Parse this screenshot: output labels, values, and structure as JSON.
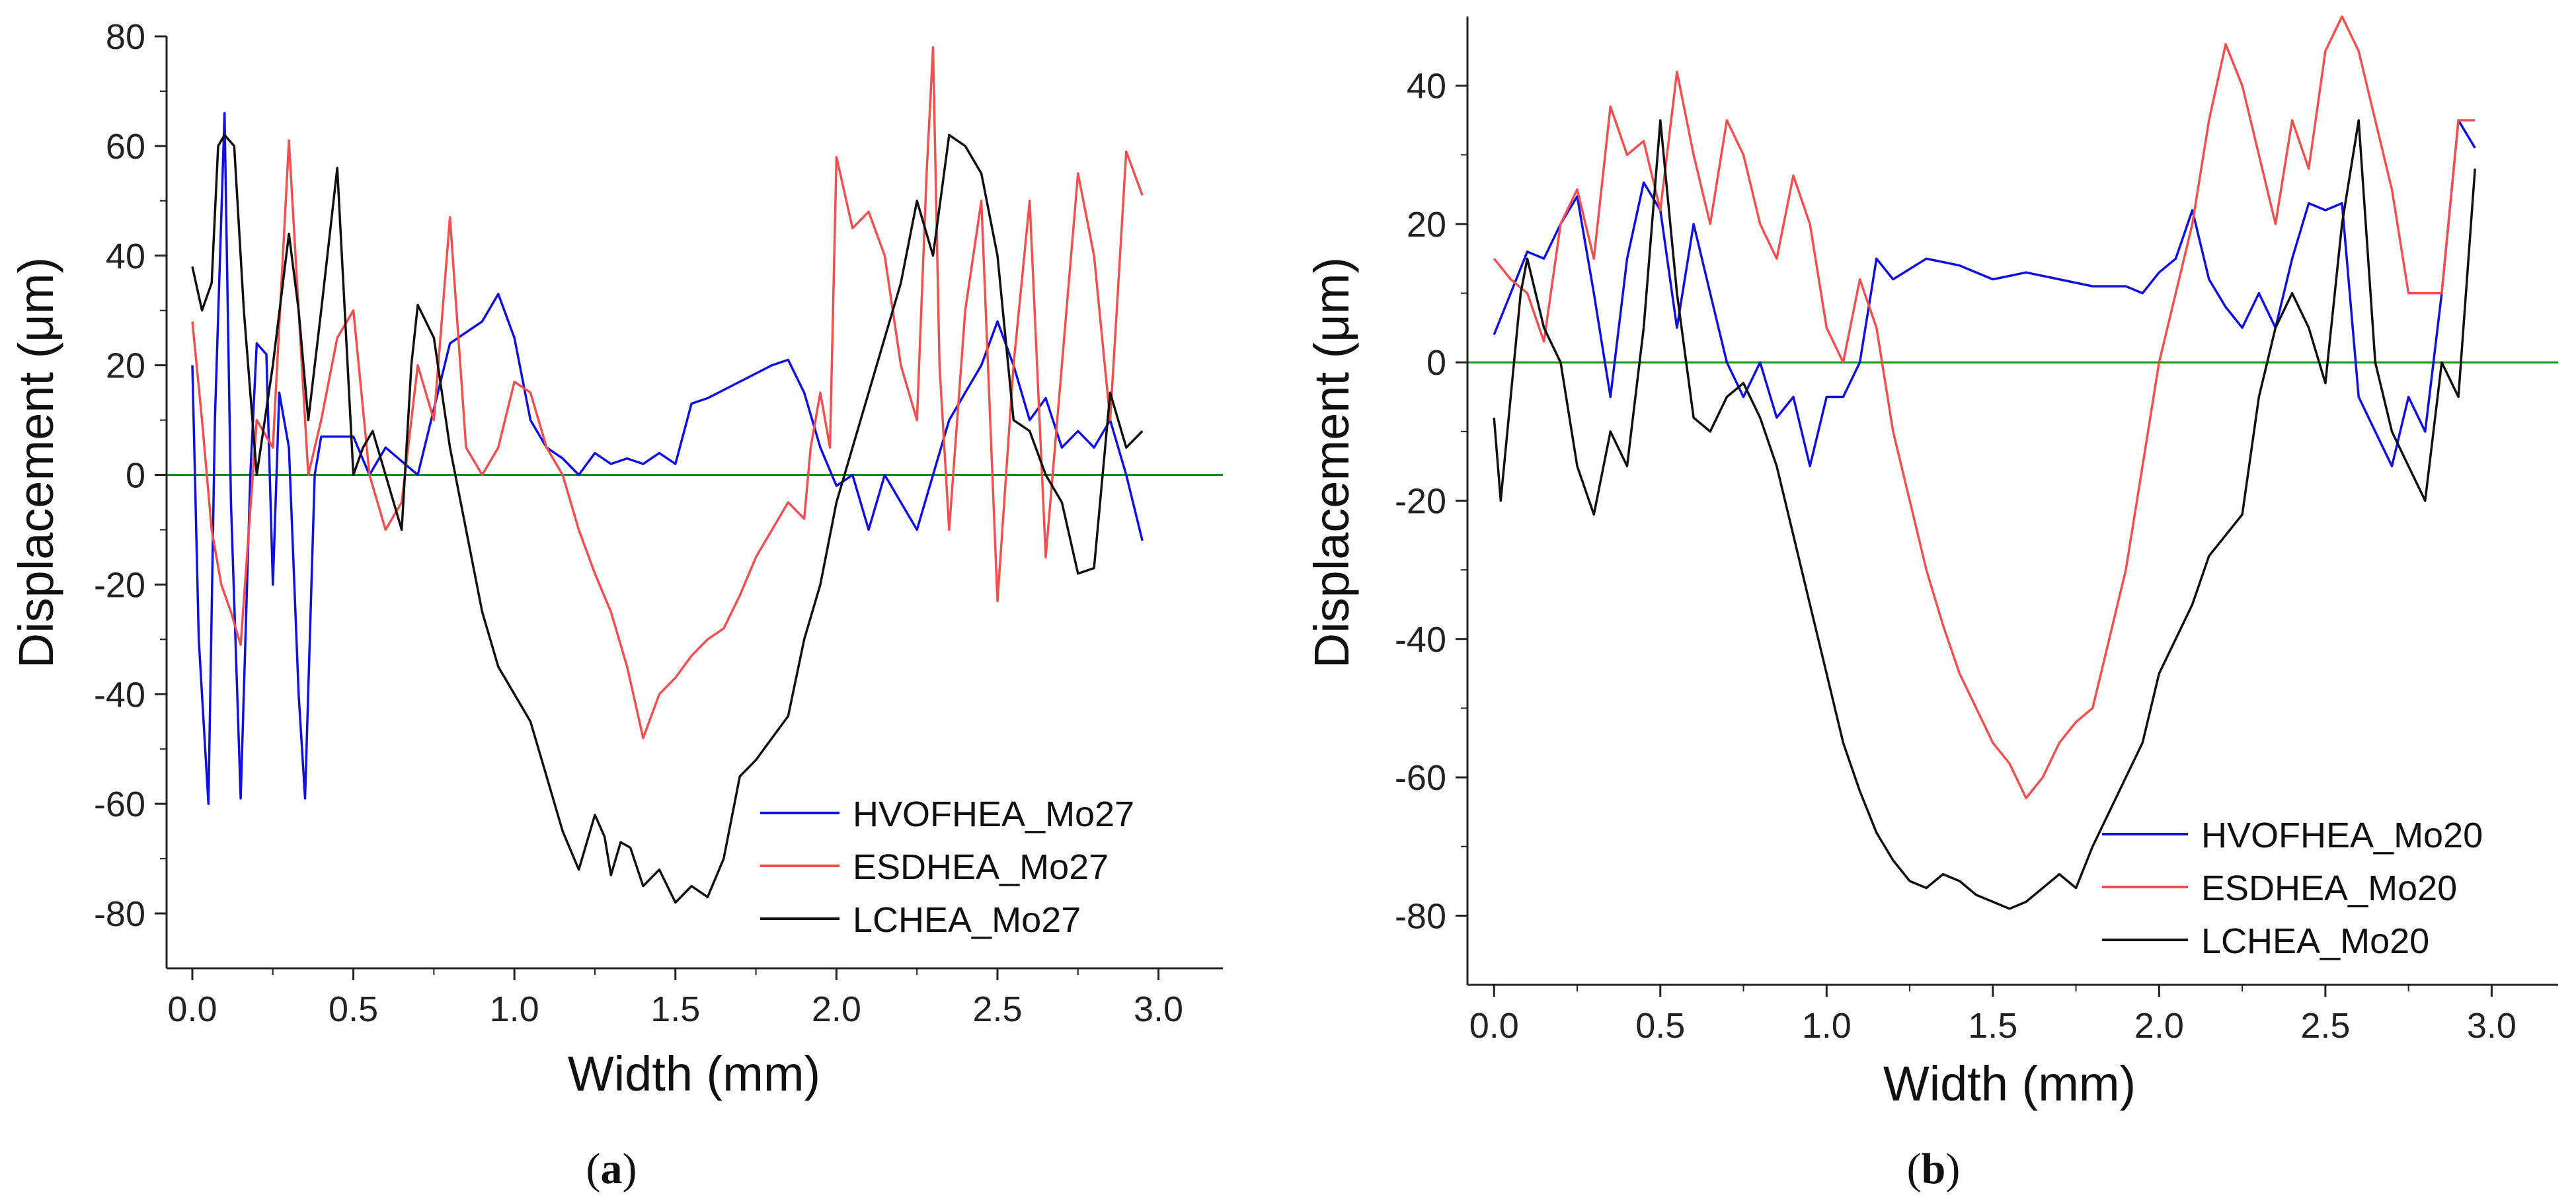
{
  "chart_data": [
    {
      "type": "line",
      "panel": "a",
      "caption": {
        "open": "(",
        "letter": "a",
        "close": ")"
      },
      "title": "",
      "xlabel": "Width (mm)",
      "ylabel": "Displacement (μm)",
      "xlim": [
        -0.08,
        3.2
      ],
      "ylim": [
        -90,
        80
      ],
      "xticks": [
        0.0,
        0.5,
        1.0,
        1.5,
        2.0,
        2.5,
        3.0
      ],
      "xtick_labels": [
        "0.0",
        "0.5",
        "1.0",
        "1.5",
        "2.0",
        "2.5",
        "3.0"
      ],
      "yticks": [
        80,
        60,
        40,
        20,
        0,
        -20,
        -40,
        -60,
        -80
      ],
      "ytick_labels": [
        "80",
        "60",
        "40",
        "20",
        "0",
        "-20",
        "-40",
        "-60",
        "-80"
      ],
      "zero_line": {
        "y": 0,
        "color": "#109010"
      },
      "legend_position": "bottom-right",
      "series": [
        {
          "name": "HVOFHEA_Mo27",
          "color": "#1010e0",
          "x": [
            0.0,
            0.02,
            0.05,
            0.07,
            0.1,
            0.12,
            0.15,
            0.18,
            0.2,
            0.23,
            0.25,
            0.27,
            0.3,
            0.33,
            0.35,
            0.38,
            0.4,
            0.5,
            0.55,
            0.6,
            0.7,
            0.8,
            0.9,
            0.95,
            1.0,
            1.05,
            1.1,
            1.15,
            1.2,
            1.25,
            1.3,
            1.35,
            1.4,
            1.45,
            1.5,
            1.55,
            1.6,
            1.7,
            1.8,
            1.85,
            1.9,
            1.95,
            2.0,
            2.05,
            2.1,
            2.15,
            2.2,
            2.25,
            2.3,
            2.35,
            2.4,
            2.45,
            2.5,
            2.55,
            2.6,
            2.65,
            2.7,
            2.75,
            2.8,
            2.85,
            2.9,
            2.95
          ],
          "values": [
            20,
            -30,
            -60,
            10,
            66,
            -5,
            -59,
            0,
            24,
            22,
            -20,
            15,
            5,
            -40,
            -59,
            0,
            7,
            7,
            0,
            5,
            0,
            24,
            28,
            33,
            25,
            10,
            5,
            3,
            0,
            4,
            2,
            3,
            2,
            4,
            2,
            13,
            14,
            17,
            20,
            21,
            15,
            5,
            -2,
            0,
            -10,
            0,
            -5,
            -10,
            0,
            10,
            15,
            20,
            28,
            20,
            10,
            14,
            5,
            8,
            5,
            10,
            0,
            -12
          ]
        },
        {
          "name": "ESDHEA_Mo27",
          "color": "#f05050",
          "x": [
            0.0,
            0.03,
            0.06,
            0.09,
            0.12,
            0.15,
            0.2,
            0.25,
            0.3,
            0.33,
            0.36,
            0.4,
            0.45,
            0.5,
            0.55,
            0.6,
            0.65,
            0.7,
            0.75,
            0.8,
            0.85,
            0.9,
            0.95,
            1.0,
            1.05,
            1.1,
            1.15,
            1.2,
            1.25,
            1.3,
            1.35,
            1.4,
            1.45,
            1.5,
            1.55,
            1.6,
            1.65,
            1.7,
            1.75,
            1.8,
            1.85,
            1.9,
            1.92,
            1.95,
            1.98,
            2.0,
            2.05,
            2.1,
            2.15,
            2.2,
            2.25,
            2.28,
            2.3,
            2.32,
            2.35,
            2.4,
            2.45,
            2.5,
            2.55,
            2.6,
            2.65,
            2.7,
            2.75,
            2.8,
            2.85,
            2.9,
            2.95
          ],
          "values": [
            28,
            10,
            -10,
            -20,
            -25,
            -31,
            10,
            5,
            61,
            30,
            0,
            10,
            25,
            30,
            0,
            -10,
            -5,
            20,
            10,
            47,
            5,
            0,
            5,
            17,
            15,
            5,
            0,
            -10,
            -18,
            -25,
            -35,
            -48,
            -40,
            -37,
            -33,
            -30,
            -28,
            -22,
            -15,
            -10,
            -5,
            -8,
            5,
            15,
            5,
            58,
            45,
            48,
            40,
            20,
            10,
            55,
            78,
            20,
            -10,
            30,
            50,
            -23,
            20,
            50,
            -15,
            20,
            55,
            40,
            10,
            59,
            51
          ]
        },
        {
          "name": "LCHEA_Mo27",
          "color": "#111111",
          "x": [
            0.0,
            0.03,
            0.06,
            0.08,
            0.1,
            0.13,
            0.16,
            0.2,
            0.25,
            0.3,
            0.33,
            0.36,
            0.4,
            0.45,
            0.5,
            0.53,
            0.56,
            0.6,
            0.65,
            0.68,
            0.7,
            0.75,
            0.8,
            0.85,
            0.9,
            0.95,
            1.0,
            1.05,
            1.1,
            1.15,
            1.2,
            1.25,
            1.28,
            1.3,
            1.33,
            1.36,
            1.4,
            1.45,
            1.5,
            1.55,
            1.6,
            1.65,
            1.7,
            1.75,
            1.8,
            1.85,
            1.9,
            1.95,
            2.0,
            2.05,
            2.1,
            2.15,
            2.2,
            2.25,
            2.3,
            2.35,
            2.4,
            2.45,
            2.5,
            2.55,
            2.6,
            2.65,
            2.7,
            2.75,
            2.8,
            2.85,
            2.9,
            2.95
          ],
          "values": [
            38,
            30,
            35,
            60,
            62,
            60,
            30,
            0,
            20,
            44,
            30,
            10,
            30,
            56,
            0,
            5,
            8,
            0,
            -10,
            20,
            31,
            25,
            5,
            -10,
            -25,
            -35,
            -40,
            -45,
            -55,
            -65,
            -72,
            -62,
            -66,
            -73,
            -67,
            -68,
            -75,
            -72,
            -78,
            -75,
            -77,
            -70,
            -55,
            -52,
            -48,
            -44,
            -30,
            -20,
            -5,
            5,
            15,
            25,
            35,
            50,
            40,
            62,
            60,
            55,
            40,
            10,
            8,
            0,
            -5,
            -18,
            -17,
            15,
            5,
            8
          ]
        }
      ]
    },
    {
      "type": "line",
      "panel": "b",
      "caption": {
        "open": "(",
        "letter": "b",
        "close": ")"
      },
      "title": "",
      "xlabel": "Width (mm)",
      "ylabel": "Displacement (μm)",
      "xlim": [
        -0.08,
        3.2
      ],
      "ylim": [
        -90,
        50
      ],
      "xticks": [
        0.0,
        0.5,
        1.0,
        1.5,
        2.0,
        2.5,
        3.0
      ],
      "xtick_labels": [
        "0.0",
        "0.5",
        "1.0",
        "1.5",
        "2.0",
        "2.5",
        "3.0"
      ],
      "yticks": [
        40,
        20,
        0,
        -20,
        -40,
        -60,
        -80
      ],
      "ytick_labels": [
        "40",
        "20",
        "0",
        "-20",
        "-40",
        "-60",
        "-80"
      ],
      "zero_line": {
        "y": 0,
        "color": "#109010"
      },
      "legend_position": "bottom-right",
      "series": [
        {
          "name": "HVOFHEA_Mo20",
          "color": "#1010e0",
          "x": [
            0.0,
            0.05,
            0.1,
            0.15,
            0.2,
            0.25,
            0.3,
            0.35,
            0.4,
            0.45,
            0.5,
            0.55,
            0.6,
            0.65,
            0.7,
            0.75,
            0.8,
            0.85,
            0.9,
            0.95,
            1.0,
            1.05,
            1.1,
            1.15,
            1.2,
            1.3,
            1.4,
            1.5,
            1.6,
            1.7,
            1.8,
            1.9,
            1.95,
            2.0,
            2.05,
            2.1,
            2.15,
            2.2,
            2.25,
            2.3,
            2.35,
            2.4,
            2.45,
            2.5,
            2.55,
            2.6,
            2.65,
            2.7,
            2.75,
            2.8,
            2.85,
            2.9,
            2.95
          ],
          "values": [
            4,
            10,
            16,
            15,
            20,
            24,
            10,
            -5,
            15,
            26,
            22,
            5,
            20,
            10,
            0,
            -5,
            0,
            -8,
            -5,
            -15,
            -5,
            -5,
            0,
            15,
            12,
            15,
            14,
            12,
            13,
            12,
            11,
            11,
            10,
            13,
            15,
            22,
            12,
            8,
            5,
            10,
            5,
            15,
            23,
            22,
            23,
            -5,
            -10,
            -15,
            -5,
            -10,
            10,
            35,
            31
          ]
        },
        {
          "name": "ESDHEA_Mo20",
          "color": "#f05050",
          "x": [
            0.0,
            0.05,
            0.1,
            0.15,
            0.2,
            0.25,
            0.3,
            0.35,
            0.4,
            0.45,
            0.5,
            0.55,
            0.6,
            0.65,
            0.7,
            0.75,
            0.8,
            0.85,
            0.9,
            0.95,
            1.0,
            1.05,
            1.1,
            1.15,
            1.2,
            1.25,
            1.3,
            1.35,
            1.4,
            1.45,
            1.5,
            1.55,
            1.6,
            1.65,
            1.7,
            1.75,
            1.8,
            1.85,
            1.9,
            1.95,
            2.0,
            2.05,
            2.1,
            2.15,
            2.2,
            2.25,
            2.3,
            2.35,
            2.4,
            2.45,
            2.5,
            2.55,
            2.6,
            2.65,
            2.7,
            2.75,
            2.8,
            2.85,
            2.9,
            2.95
          ],
          "values": [
            15,
            12,
            10,
            3,
            20,
            25,
            15,
            37,
            30,
            32,
            22,
            42,
            30,
            20,
            35,
            30,
            20,
            15,
            27,
            20,
            5,
            0,
            12,
            5,
            -10,
            -20,
            -30,
            -38,
            -45,
            -50,
            -55,
            -58,
            -63,
            -60,
            -55,
            -52,
            -50,
            -40,
            -30,
            -15,
            0,
            10,
            20,
            35,
            46,
            40,
            30,
            20,
            35,
            28,
            45,
            50,
            45,
            35,
            25,
            10,
            10,
            10,
            35,
            35
          ]
        },
        {
          "name": "LCHEA_Mo20",
          "color": "#111111",
          "x": [
            0.0,
            0.02,
            0.05,
            0.08,
            0.1,
            0.15,
            0.2,
            0.25,
            0.3,
            0.35,
            0.4,
            0.45,
            0.5,
            0.52,
            0.55,
            0.6,
            0.65,
            0.7,
            0.75,
            0.8,
            0.85,
            0.9,
            0.95,
            1.0,
            1.05,
            1.1,
            1.15,
            1.2,
            1.25,
            1.3,
            1.35,
            1.4,
            1.45,
            1.5,
            1.55,
            1.6,
            1.65,
            1.7,
            1.75,
            1.8,
            1.85,
            1.9,
            1.95,
            2.0,
            2.05,
            2.1,
            2.15,
            2.2,
            2.25,
            2.3,
            2.35,
            2.4,
            2.45,
            2.5,
            2.55,
            2.6,
            2.65,
            2.7,
            2.75,
            2.8,
            2.85,
            2.9,
            2.95
          ],
          "values": [
            -8,
            -20,
            -5,
            10,
            15,
            5,
            0,
            -15,
            -22,
            -10,
            -15,
            5,
            35,
            25,
            10,
            -8,
            -10,
            -5,
            -3,
            -8,
            -15,
            -25,
            -35,
            -45,
            -55,
            -62,
            -68,
            -72,
            -75,
            -76,
            -74,
            -75,
            -77,
            -78,
            -79,
            -78,
            -76,
            -74,
            -76,
            -70,
            -65,
            -60,
            -55,
            -45,
            -40,
            -35,
            -28,
            -25,
            -22,
            -5,
            5,
            10,
            5,
            -3,
            20,
            35,
            0,
            -10,
            -15,
            -20,
            0,
            -5,
            28
          ]
        }
      ]
    }
  ]
}
